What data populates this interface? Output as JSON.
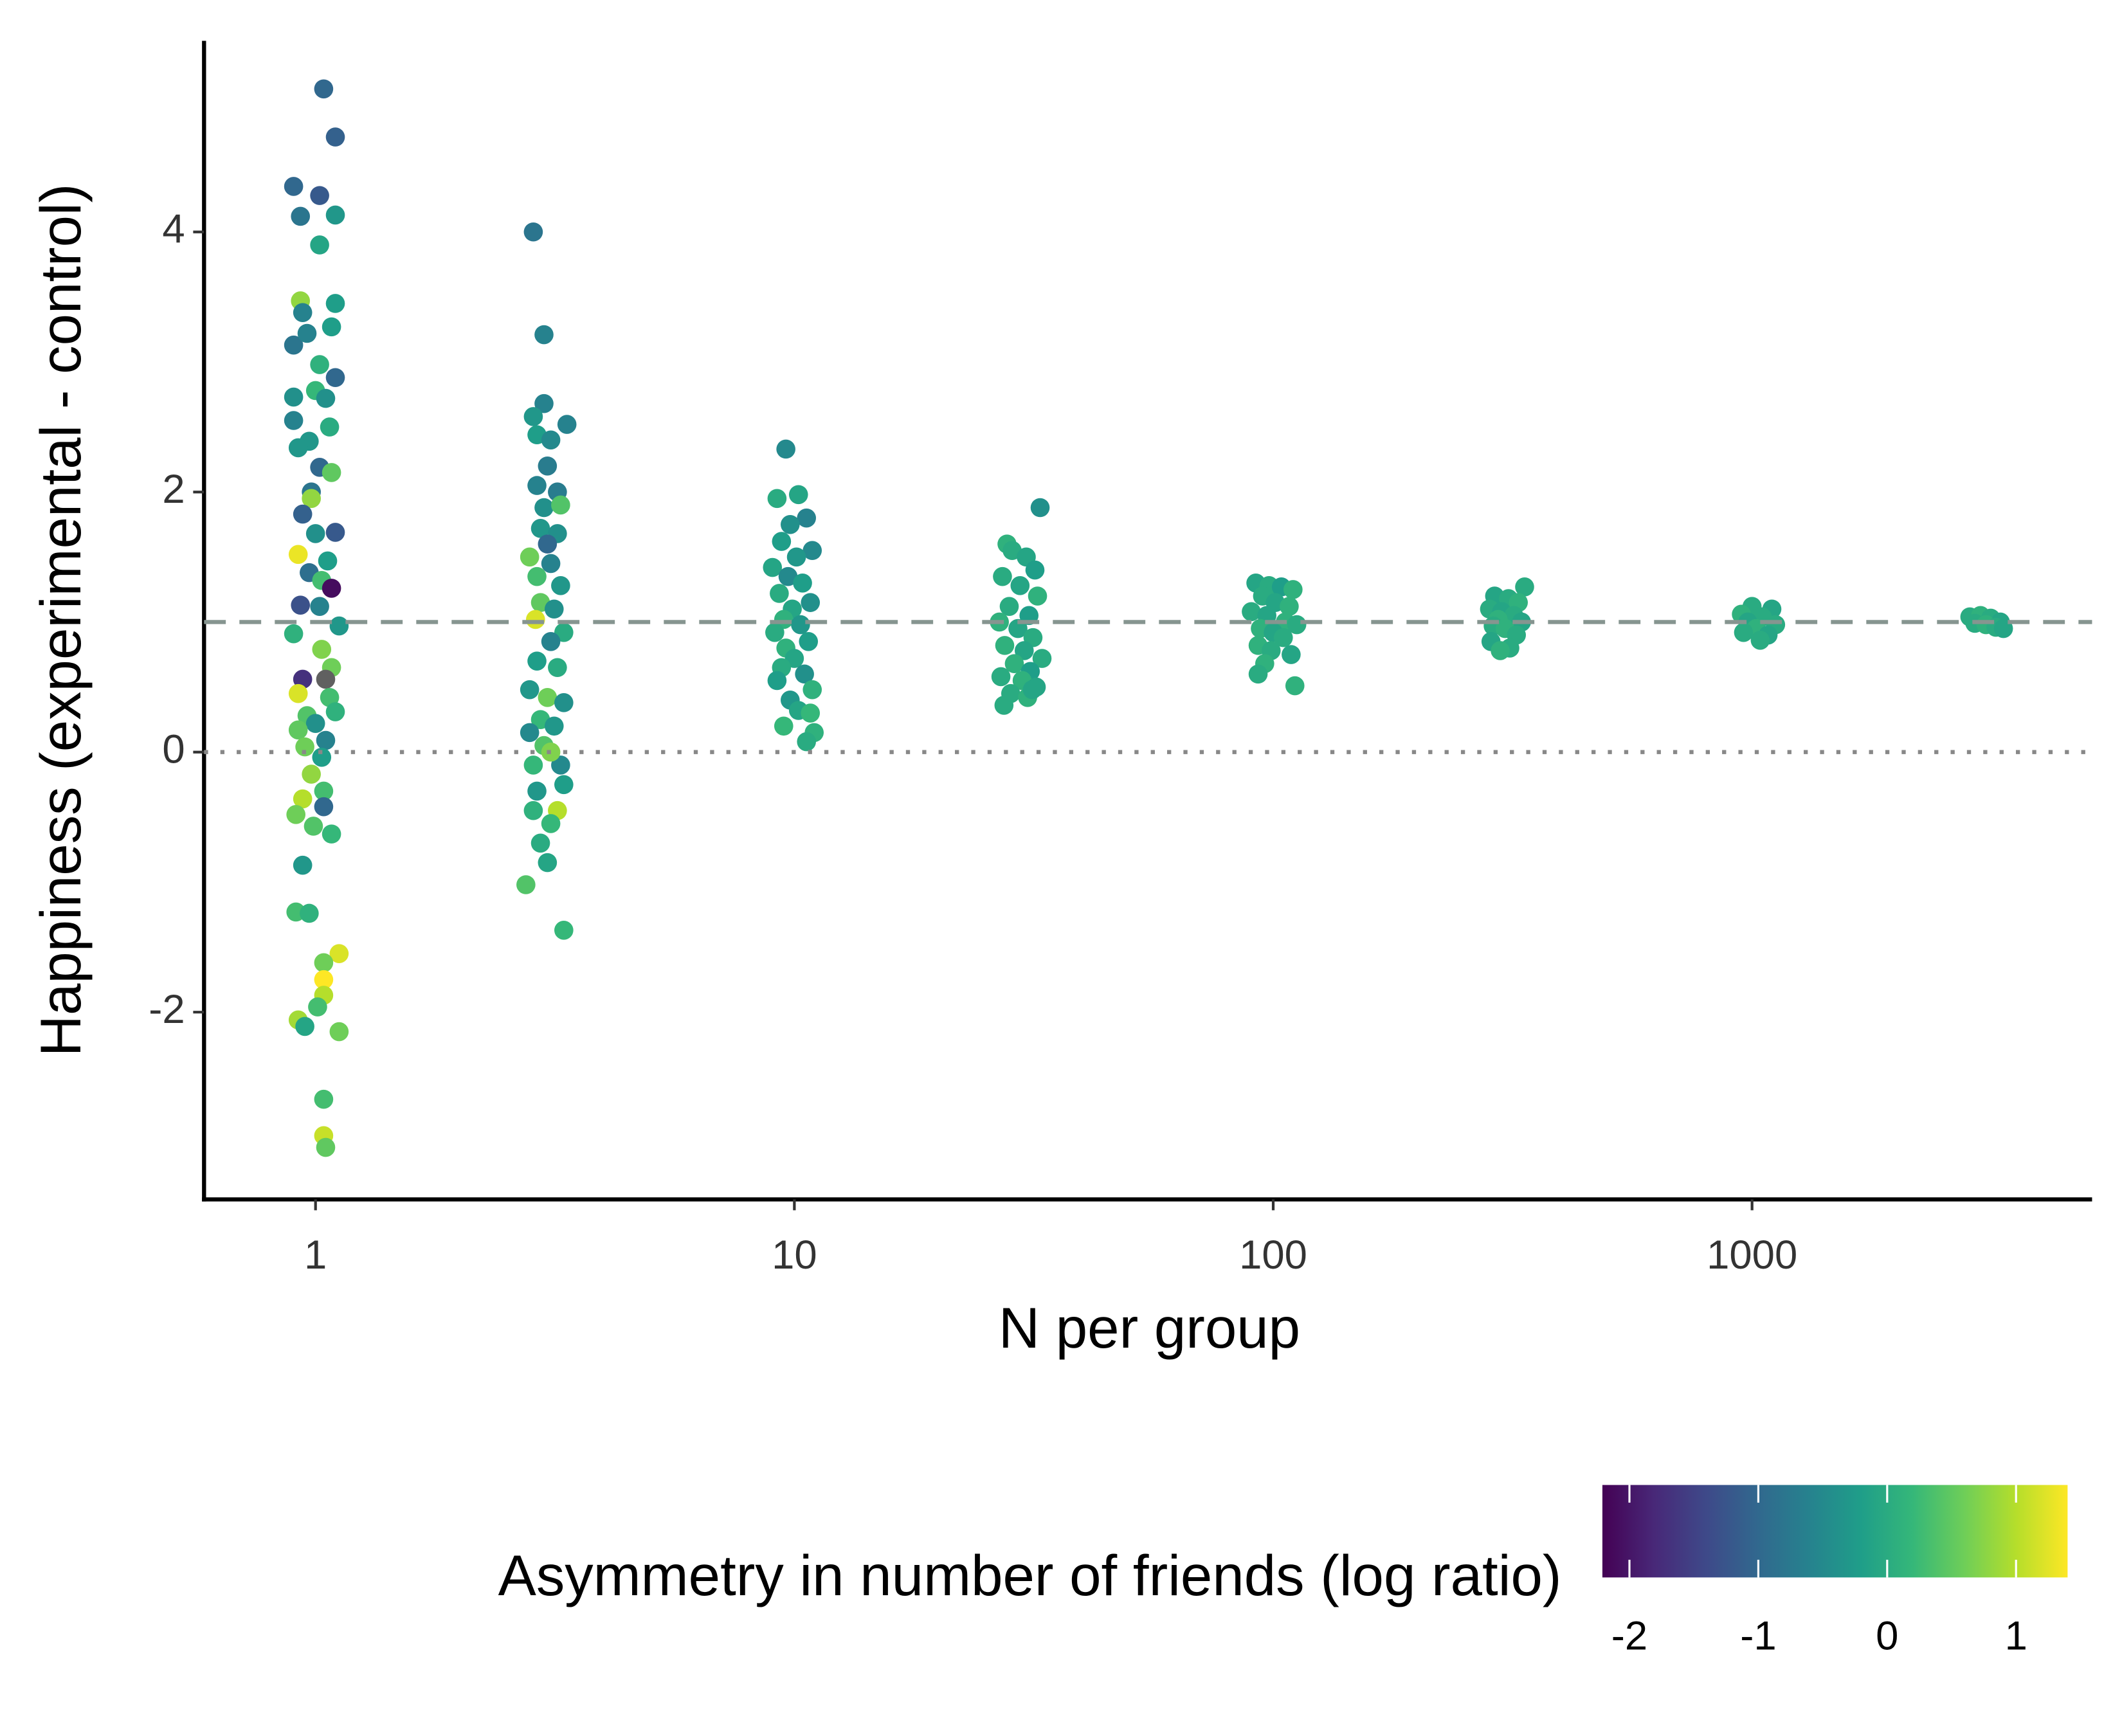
{
  "chart_data": {
    "type": "scatter",
    "xlabel": "N per group",
    "ylabel": "Happiness (experimental - control)",
    "colorbar_title": "Asymmetry in number of friends (log ratio)",
    "x": [
      1.04,
      1.1,
      0.9,
      1.02,
      0.93,
      1.1,
      1.02,
      0.93,
      1.1,
      0.94,
      0.9,
      0.96,
      1.08,
      1.02,
      1.1,
      0.9,
      1.0,
      1.05,
      0.9,
      1.07,
      0.97,
      0.92,
      1.02,
      1.08,
      0.98,
      0.98,
      0.94,
      1.1,
      1.0,
      0.92,
      1.06,
      0.97,
      1.03,
      1.08,
      0.93,
      1.02,
      1.12,
      0.9,
      1.03,
      1.08,
      0.94,
      1.05,
      0.92,
      1.07,
      0.96,
      1.1,
      1.0,
      0.92,
      1.05,
      0.95,
      1.03,
      0.98,
      1.04,
      0.94,
      1.04,
      0.91,
      0.99,
      1.08,
      0.94,
      0.91,
      0.97,
      1.12,
      1.04,
      1.04,
      1.04,
      1.01,
      0.92,
      0.95,
      1.12,
      1.04,
      1.04,
      1.05,
      2.85,
      3.0,
      3.0,
      2.85,
      3.35,
      2.9,
      3.1,
      3.05,
      2.9,
      3.2,
      3.0,
      3.25,
      2.95,
      3.2,
      2.8,
      3.05,
      2.9,
      3.1,
      3.25,
      2.95,
      3.15,
      2.88,
      3.3,
      3.1,
      2.9,
      3.2,
      2.8,
      3.05,
      3.3,
      2.95,
      3.15,
      2.8,
      3.0,
      3.25,
      2.85,
      3.1,
      2.9,
      3.3,
      3.2,
      2.85,
      3.1,
      2.95,
      3.05,
      2.75,
      3.3,
      9.6,
      10.2,
      9.2,
      10.6,
      9.8,
      9.4,
      10.9,
      10.1,
      9.0,
      9.7,
      10.4,
      9.3,
      10.8,
      9.9,
      9.5,
      10.3,
      9.1,
      10.7,
      9.6,
      10.0,
      9.4,
      10.5,
      9.2,
      10.9,
      9.8,
      10.2,
      9.5,
      11.0,
      10.6,
      10.8,
      32.6,
      27.8,
      28.5,
      30.5,
      31.8,
      27.2,
      29.6,
      32.2,
      28.1,
      30.9,
      26.8,
      29.3,
      31.5,
      27.5,
      30.2,
      32.9,
      28.8,
      31.1,
      27.0,
      29.9,
      32.0,
      28.3,
      30.7,
      27.4,
      31.4,
      92,
      98,
      104,
      110,
      95,
      101,
      108,
      90,
      97,
      106,
      112,
      94,
      100,
      105,
      93,
      99,
      109,
      96,
      93,
      111,
      335,
      290,
      310,
      325,
      283,
      300,
      318,
      295,
      330,
      288,
      305,
      322,
      285,
      312,
      298,
      1000,
      1100,
      950,
      1050,
      980,
      1120,
      1020,
      960,
      1080,
      1040,
      2850,
      3000,
      3150,
      3300,
      2920,
      3080,
      3230,
      3350
    ],
    "values": [
      5.1,
      4.73,
      4.35,
      4.28,
      4.12,
      4.13,
      3.9,
      3.47,
      3.45,
      3.38,
      3.13,
      3.22,
      3.27,
      2.98,
      2.88,
      2.73,
      2.78,
      2.72,
      2.55,
      2.5,
      2.39,
      2.34,
      2.19,
      2.15,
      2.0,
      1.95,
      1.83,
      1.69,
      1.68,
      1.52,
      1.47,
      1.38,
      1.32,
      1.26,
      1.13,
      1.12,
      0.97,
      0.91,
      0.79,
      0.65,
      0.56,
      0.56,
      0.45,
      0.42,
      0.28,
      0.31,
      0.22,
      0.17,
      0.09,
      0.04,
      -0.04,
      -0.17,
      -0.3,
      -0.36,
      -0.42,
      -0.48,
      -0.57,
      -0.63,
      -0.87,
      -1.23,
      -1.24,
      -1.55,
      -1.62,
      -1.75,
      -1.87,
      -1.96,
      -2.06,
      -2.11,
      -2.15,
      -2.67,
      -2.95,
      -3.04,
      4.0,
      3.21,
      2.68,
      2.58,
      2.52,
      2.44,
      2.4,
      2.2,
      2.05,
      2.0,
      1.88,
      1.9,
      1.72,
      1.68,
      1.5,
      1.6,
      1.35,
      1.45,
      1.28,
      1.15,
      1.1,
      1.02,
      0.92,
      0.85,
      0.7,
      0.65,
      0.48,
      0.42,
      0.38,
      0.25,
      0.2,
      0.15,
      0.05,
      -0.1,
      -0.1,
      0.0,
      -0.3,
      -0.25,
      -0.45,
      -0.45,
      -0.55,
      -0.7,
      -0.85,
      -1.02,
      -1.37,
      2.33,
      1.98,
      1.95,
      1.8,
      1.75,
      1.62,
      1.55,
      1.5,
      1.42,
      1.35,
      1.3,
      1.22,
      1.15,
      1.1,
      1.02,
      0.98,
      0.92,
      0.85,
      0.8,
      0.72,
      0.65,
      0.6,
      0.55,
      0.48,
      0.4,
      0.32,
      0.2,
      0.15,
      0.08,
      0.3,
      1.88,
      1.6,
      1.55,
      1.5,
      1.4,
      1.35,
      1.28,
      1.2,
      1.12,
      1.05,
      1.0,
      0.95,
      0.88,
      0.82,
      0.78,
      0.72,
      0.68,
      0.62,
      0.58,
      0.55,
      0.5,
      0.45,
      0.42,
      0.36,
      0.48,
      1.3,
      1.28,
      1.27,
      1.25,
      1.2,
      1.15,
      1.12,
      1.08,
      1.05,
      1.0,
      0.98,
      0.95,
      0.92,
      0.88,
      0.82,
      0.78,
      0.75,
      0.68,
      0.6,
      0.51,
      1.27,
      1.2,
      1.18,
      1.15,
      1.1,
      1.08,
      1.05,
      1.02,
      1.0,
      0.97,
      0.95,
      0.9,
      0.85,
      0.8,
      0.78,
      1.12,
      1.1,
      1.06,
      1.04,
      1.0,
      0.98,
      0.95,
      0.92,
      0.9,
      0.86,
      1.04,
      1.05,
      1.03,
      1.0,
      0.99,
      0.98,
      0.96,
      0.95
    ],
    "color_values": [
      -1.0,
      -1.1,
      -1.0,
      -1.2,
      -0.8,
      -0.3,
      -0.1,
      0.8,
      -0.2,
      -0.6,
      -0.8,
      -0.6,
      -0.2,
      0.1,
      -1.0,
      -0.4,
      0.2,
      -0.4,
      -0.6,
      0.0,
      -0.3,
      -0.3,
      -1.0,
      0.5,
      -0.8,
      0.8,
      -1.1,
      -1.2,
      -0.4,
      1.3,
      -0.2,
      -0.9,
      0.3,
      -2.1,
      -1.3,
      -0.6,
      -0.3,
      0.1,
      0.7,
      0.6,
      -1.7,
      null,
      1.2,
      0.3,
      0.4,
      0.1,
      -0.4,
      0.5,
      -0.6,
      0.6,
      -0.2,
      0.8,
      0.3,
      1.0,
      -1.0,
      0.6,
      0.4,
      0.2,
      -0.3,
      0.3,
      0.1,
      1.2,
      0.6,
      1.4,
      1.0,
      0.3,
      0.9,
      -0.1,
      0.6,
      0.3,
      1.1,
      0.5,
      -0.8,
      -0.6,
      -0.6,
      -0.3,
      -0.6,
      -0.2,
      -0.5,
      -0.7,
      -0.6,
      -0.7,
      -0.4,
      0.4,
      -0.3,
      -0.4,
      0.6,
      -1.0,
      0.3,
      -0.6,
      -0.3,
      0.5,
      -0.4,
      1.2,
      0.0,
      -0.6,
      -0.2,
      0.0,
      -0.3,
      0.6,
      -0.4,
      0.2,
      -0.3,
      -0.5,
      0.4,
      -0.5,
      0.2,
      0.7,
      -0.3,
      -0.2,
      1.0,
      0.1,
      0.2,
      0.0,
      -0.1,
      0.4,
      0.2,
      -0.5,
      -0.1,
      0.0,
      -0.6,
      -0.4,
      -0.2,
      -0.5,
      -0.3,
      -0.1,
      -0.5,
      -0.2,
      0.0,
      -0.4,
      -0.1,
      0.1,
      -0.3,
      0.0,
      -0.2,
      0.1,
      -0.1,
      0.0,
      -0.4,
      -0.2,
      0.1,
      -0.3,
      -0.1,
      0.2,
      0.1,
      0.0,
      0.2,
      -0.4,
      0.1,
      0.0,
      -0.1,
      -0.2,
      0.0,
      -0.1,
      0.1,
      0.0,
      -0.2,
      0.1,
      -0.1,
      0.0,
      0.1,
      -0.1,
      0.0,
      0.1,
      -0.2,
      0.0,
      0.1,
      -0.1,
      0.0,
      0.1,
      0.0,
      -0.1,
      -0.1,
      0.0,
      -0.2,
      0.1,
      0.0,
      -0.1,
      0.1,
      0.0,
      -0.1,
      0.1,
      0.0,
      0.1,
      -0.1,
      0.0,
      0.1,
      0.0,
      -0.1,
      0.1,
      0.0,
      0.1,
      0.0,
      -0.1,
      0.0,
      0.1,
      0.0,
      -0.1,
      0.0,
      0.1,
      -0.1,
      0.0,
      0.1,
      0.0,
      -0.1,
      0.0,
      0.1,
      0.0,
      -0.1,
      0.1,
      0.0,
      -0.1,
      0.0,
      0.1,
      0.0,
      -0.1,
      0.0,
      0.0,
      0.1,
      0.0,
      -0.1,
      0.0,
      0.1,
      0.0,
      -0.1
    ],
    "colormap": [
      "#440154",
      "#482878",
      "#3e4989",
      "#31688e",
      "#26828e",
      "#1f9e89",
      "#35b779",
      "#6ece58",
      "#b5de2b",
      "#fde725"
    ],
    "na_color": "#606060",
    "clim": [
      -2.21,
      1.4
    ],
    "cticks": [
      -2,
      -1,
      0,
      1
    ],
    "xlog": true,
    "xlim": [
      0.585,
      5130
    ],
    "xticks": [
      1,
      10,
      100,
      1000
    ],
    "ylim": [
      -3.44,
      5.47
    ],
    "yticks": [
      -2,
      0,
      2,
      4
    ],
    "reference_lines": [
      {
        "value": 1,
        "style": "dashed",
        "color": "#869590"
      },
      {
        "value": 0,
        "style": "dotted",
        "color": "#888888"
      }
    ],
    "legend_position": "bottom"
  }
}
